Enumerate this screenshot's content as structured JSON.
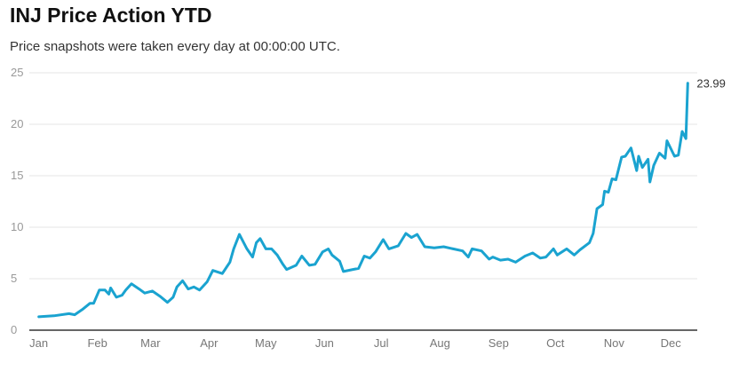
{
  "chart_data": {
    "type": "line",
    "title": "INJ Price Action YTD",
    "subtitle": "Price snapshots were taken every day at 00:00:00 UTC.",
    "xlabel": "",
    "ylabel": "",
    "ylim": [
      0,
      25
    ],
    "xlim_day_of_year": [
      -5,
      348
    ],
    "grid": true,
    "yticks": [
      "0",
      "5",
      "10",
      "15",
      "20",
      "25"
    ],
    "xticks": [
      {
        "label": "Jan",
        "day": 0
      },
      {
        "label": "Feb",
        "day": 31
      },
      {
        "label": "Mar",
        "day": 59
      },
      {
        "label": "Apr",
        "day": 90
      },
      {
        "label": "May",
        "day": 120
      },
      {
        "label": "Jun",
        "day": 151
      },
      {
        "label": "Jul",
        "day": 181
      },
      {
        "label": "Aug",
        "day": 212
      },
      {
        "label": "Sep",
        "day": 243
      },
      {
        "label": "Oct",
        "day": 273
      },
      {
        "label": "Nov",
        "day": 304
      },
      {
        "label": "Dec",
        "day": 334
      }
    ],
    "end_label": "23.99",
    "color": "#1aa3d0",
    "series": [
      {
        "name": "INJ price (USD)",
        "points": [
          [
            0,
            1.3
          ],
          [
            8,
            1.4
          ],
          [
            16,
            1.6
          ],
          [
            19,
            1.5
          ],
          [
            23,
            2.0
          ],
          [
            27,
            2.6
          ],
          [
            29,
            2.6
          ],
          [
            32,
            3.9
          ],
          [
            35,
            3.9
          ],
          [
            37,
            3.5
          ],
          [
            38,
            4.1
          ],
          [
            41,
            3.2
          ],
          [
            44,
            3.4
          ],
          [
            46,
            3.9
          ],
          [
            49,
            4.5
          ],
          [
            53,
            4.0
          ],
          [
            56,
            3.6
          ],
          [
            60,
            3.8
          ],
          [
            64,
            3.3
          ],
          [
            68,
            2.7
          ],
          [
            71,
            3.2
          ],
          [
            73,
            4.2
          ],
          [
            76,
            4.8
          ],
          [
            79,
            4.0
          ],
          [
            82,
            4.2
          ],
          [
            85,
            3.9
          ],
          [
            89,
            4.7
          ],
          [
            92,
            5.8
          ],
          [
            97,
            5.5
          ],
          [
            101,
            6.6
          ],
          [
            103,
            7.9
          ],
          [
            106,
            9.3
          ],
          [
            110,
            7.9
          ],
          [
            113,
            7.1
          ],
          [
            115,
            8.5
          ],
          [
            117,
            8.9
          ],
          [
            120,
            7.9
          ],
          [
            123,
            7.9
          ],
          [
            126,
            7.3
          ],
          [
            129,
            6.4
          ],
          [
            131,
            5.9
          ],
          [
            136,
            6.3
          ],
          [
            139,
            7.2
          ],
          [
            143,
            6.3
          ],
          [
            146,
            6.4
          ],
          [
            150,
            7.6
          ],
          [
            153,
            7.9
          ],
          [
            155,
            7.3
          ],
          [
            159,
            6.7
          ],
          [
            161,
            5.7
          ],
          [
            166,
            5.9
          ],
          [
            169,
            6.0
          ],
          [
            172,
            7.2
          ],
          [
            175,
            7.0
          ],
          [
            178,
            7.6
          ],
          [
            182,
            8.8
          ],
          [
            185,
            7.9
          ],
          [
            190,
            8.2
          ],
          [
            194,
            9.4
          ],
          [
            197,
            9.0
          ],
          [
            200,
            9.3
          ],
          [
            204,
            8.1
          ],
          [
            209,
            8.0
          ],
          [
            214,
            8.1
          ],
          [
            219,
            7.9
          ],
          [
            224,
            7.7
          ],
          [
            227,
            7.1
          ],
          [
            229,
            7.9
          ],
          [
            234,
            7.7
          ],
          [
            238,
            6.9
          ],
          [
            240,
            7.1
          ],
          [
            244,
            6.8
          ],
          [
            248,
            6.9
          ],
          [
            252,
            6.6
          ],
          [
            257,
            7.2
          ],
          [
            261,
            7.5
          ],
          [
            265,
            7.0
          ],
          [
            268,
            7.1
          ],
          [
            272,
            7.9
          ],
          [
            274,
            7.3
          ],
          [
            279,
            7.9
          ],
          [
            283,
            7.3
          ],
          [
            286,
            7.8
          ],
          [
            291,
            8.5
          ],
          [
            293,
            9.4
          ],
          [
            295,
            11.8
          ],
          [
            298,
            12.2
          ],
          [
            299,
            13.5
          ],
          [
            301,
            13.4
          ],
          [
            303,
            14.7
          ],
          [
            305,
            14.6
          ],
          [
            308,
            16.8
          ],
          [
            310,
            16.9
          ],
          [
            313,
            17.7
          ],
          [
            316,
            15.5
          ],
          [
            317,
            16.9
          ],
          [
            319,
            15.8
          ],
          [
            322,
            16.6
          ],
          [
            323,
            14.4
          ],
          [
            325,
            16.0
          ],
          [
            328,
            17.2
          ],
          [
            331,
            16.7
          ],
          [
            332,
            18.4
          ],
          [
            336,
            16.9
          ],
          [
            338,
            17.0
          ],
          [
            340,
            19.3
          ],
          [
            342,
            18.6
          ],
          [
            343,
            23.99
          ]
        ]
      }
    ]
  }
}
